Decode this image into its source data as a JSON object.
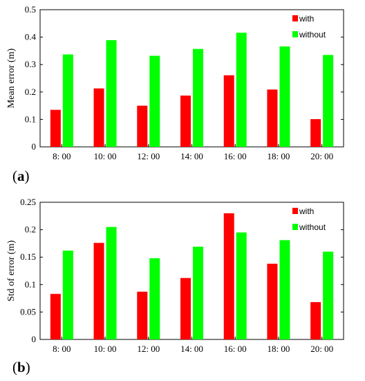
{
  "chart_data": [
    {
      "type": "bar",
      "panel_label": "a",
      "categories": [
        "8: 00",
        "10: 00",
        "12: 00",
        "14: 00",
        "16: 00",
        "18: 00",
        "20: 00"
      ],
      "series": [
        {
          "name": "with",
          "color": "#ff0000",
          "values": [
            0.135,
            0.213,
            0.15,
            0.187,
            0.261,
            0.209,
            0.101
          ]
        },
        {
          "name": "without",
          "color": "#00ff00",
          "values": [
            0.337,
            0.389,
            0.332,
            0.357,
            0.416,
            0.366,
            0.335
          ]
        }
      ],
      "ylabel": "Mean error (m)",
      "xlabel": "",
      "title": "",
      "ylim": [
        0,
        0.5
      ],
      "yticks": [
        "0",
        "0.1",
        "0.2",
        "0.3",
        "0.4",
        "0.5"
      ],
      "ytick_values": [
        0,
        0.1,
        0.2,
        0.3,
        0.4,
        0.5
      ],
      "grid": false,
      "legend_position": "top-right"
    },
    {
      "type": "bar",
      "panel_label": "b",
      "categories": [
        "8: 00",
        "10: 00",
        "12: 00",
        "14: 00",
        "16: 00",
        "18: 00",
        "20: 00"
      ],
      "series": [
        {
          "name": "with",
          "color": "#ff0000",
          "values": [
            0.083,
            0.176,
            0.087,
            0.112,
            0.23,
            0.138,
            0.068
          ]
        },
        {
          "name": "without",
          "color": "#00ff00",
          "values": [
            0.162,
            0.205,
            0.148,
            0.169,
            0.195,
            0.181,
            0.16
          ]
        }
      ],
      "ylabel": "Std of error (m)",
      "xlabel": "",
      "title": "",
      "ylim": [
        0,
        0.25
      ],
      "yticks": [
        "0",
        "0.05",
        "0.1",
        "0.15",
        "0.2",
        "0.25"
      ],
      "ytick_values": [
        0,
        0.05,
        0.1,
        0.15,
        0.2,
        0.25
      ],
      "grid": false,
      "legend_position": "top-right"
    }
  ]
}
